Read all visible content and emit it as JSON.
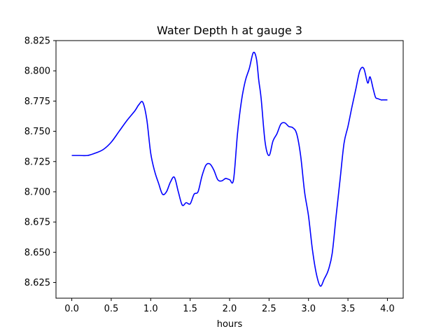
{
  "chart_data": {
    "type": "line",
    "title": "Water Depth h at gauge 3",
    "xlabel": "hours",
    "ylabel": "",
    "xlim": [
      -0.2,
      4.2
    ],
    "ylim": [
      8.612,
      8.825
    ],
    "xticks": [
      0.0,
      0.5,
      1.0,
      1.5,
      2.0,
      2.5,
      3.0,
      3.5,
      4.0
    ],
    "xtick_labels": [
      "0.0",
      "0.5",
      "1.0",
      "1.5",
      "2.0",
      "2.5",
      "3.0",
      "3.5",
      "4.0"
    ],
    "yticks": [
      8.625,
      8.65,
      8.675,
      8.7,
      8.725,
      8.75,
      8.775,
      8.8,
      8.825
    ],
    "ytick_labels": [
      "8.625",
      "8.650",
      "8.675",
      "8.700",
      "8.725",
      "8.750",
      "8.775",
      "8.800",
      "8.825"
    ],
    "grid": false,
    "series": [
      {
        "color": "#0000ff",
        "x": [
          0.0,
          0.1,
          0.2,
          0.3,
          0.4,
          0.5,
          0.6,
          0.7,
          0.8,
          0.85,
          0.9,
          0.95,
          1.0,
          1.05,
          1.1,
          1.15,
          1.2,
          1.25,
          1.3,
          1.35,
          1.4,
          1.45,
          1.5,
          1.55,
          1.6,
          1.65,
          1.7,
          1.75,
          1.8,
          1.85,
          1.9,
          1.95,
          2.0,
          2.05,
          2.1,
          2.15,
          2.2,
          2.25,
          2.3,
          2.34,
          2.37,
          2.4,
          2.45,
          2.5,
          2.55,
          2.6,
          2.65,
          2.7,
          2.75,
          2.8,
          2.85,
          2.9,
          2.95,
          3.0,
          3.05,
          3.1,
          3.15,
          3.2,
          3.25,
          3.3,
          3.35,
          3.4,
          3.45,
          3.5,
          3.55,
          3.6,
          3.65,
          3.7,
          3.75,
          3.78,
          3.82,
          3.85,
          3.88,
          3.92,
          3.95,
          4.0
        ],
        "y": [
          8.73,
          8.73,
          8.73,
          8.732,
          8.735,
          8.741,
          8.75,
          8.759,
          8.767,
          8.772,
          8.774,
          8.76,
          8.732,
          8.717,
          8.707,
          8.698,
          8.7,
          8.708,
          8.712,
          8.7,
          8.689,
          8.691,
          8.69,
          8.698,
          8.7,
          8.713,
          8.722,
          8.723,
          8.718,
          8.71,
          8.709,
          8.711,
          8.71,
          8.71,
          8.748,
          8.775,
          8.792,
          8.802,
          8.815,
          8.81,
          8.792,
          8.777,
          8.741,
          8.73,
          8.742,
          8.748,
          8.756,
          8.757,
          8.754,
          8.753,
          8.748,
          8.73,
          8.7,
          8.68,
          8.652,
          8.632,
          8.622,
          8.628,
          8.635,
          8.649,
          8.68,
          8.71,
          8.74,
          8.754,
          8.77,
          8.785,
          8.8,
          8.802,
          8.79,
          8.795,
          8.785,
          8.778,
          8.777,
          8.776,
          8.776,
          8.776
        ]
      }
    ]
  }
}
